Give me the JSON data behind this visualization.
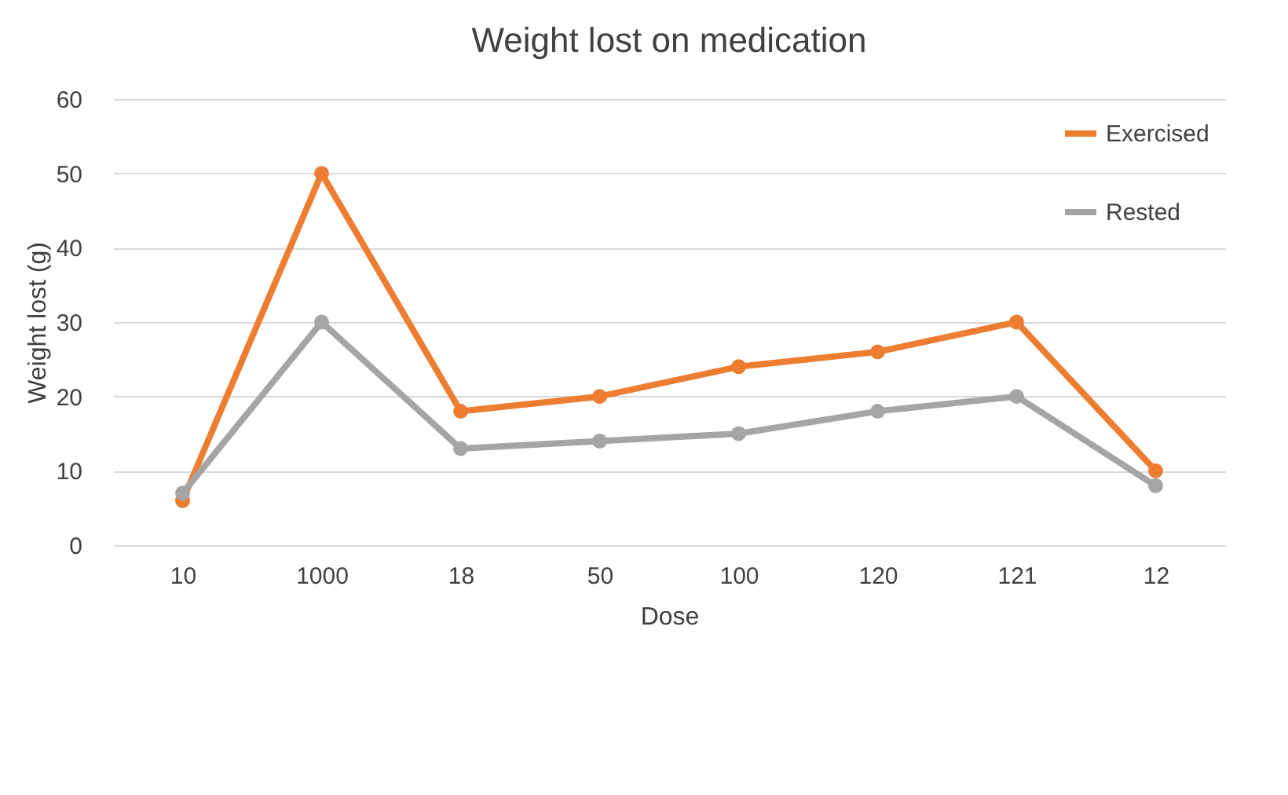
{
  "chart_data": {
    "type": "line",
    "title": "Weight lost on medication",
    "xlabel": "Dose",
    "ylabel": "Weight lost (g)",
    "categories": [
      "10",
      "1000",
      "18",
      "50",
      "100",
      "120",
      "121",
      "12"
    ],
    "series": [
      {
        "name": "Exercised",
        "color": "#ed7d31",
        "values": [
          6,
          50,
          18,
          20,
          24,
          26,
          30,
          10
        ]
      },
      {
        "name": "Rested",
        "color": "#a5a5a5",
        "values": [
          7,
          30,
          13,
          14,
          15,
          18,
          20,
          8
        ]
      }
    ],
    "ylim": [
      0,
      60
    ],
    "yticks": [
      0,
      10,
      20,
      30,
      40,
      50,
      60
    ],
    "grid": "y",
    "legend": "top right",
    "marker": "circle",
    "line_style": "solid"
  }
}
